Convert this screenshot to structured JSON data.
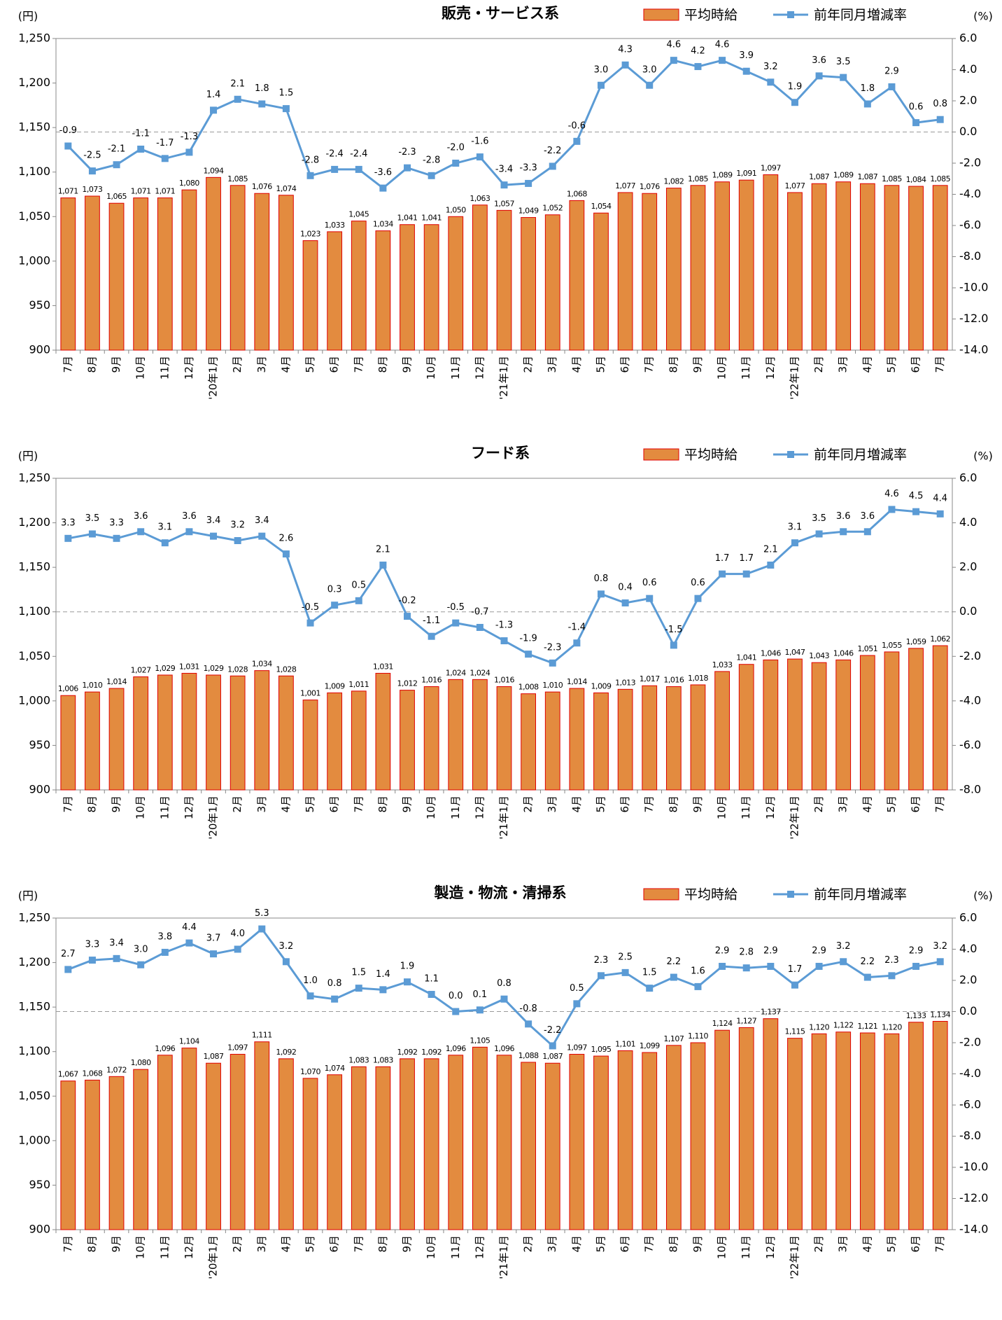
{
  "chart_data": [
    {
      "type": "bar-line",
      "title": "販売・サービス系",
      "y_label": "(円)",
      "y2_label": "(%)",
      "categories": [
        "7月",
        "8月",
        "9月",
        "10月",
        "11月",
        "12月",
        "'20年1月",
        "2月",
        "3月",
        "4月",
        "5月",
        "6月",
        "7月",
        "8月",
        "9月",
        "10月",
        "11月",
        "12月",
        "'21年1月",
        "2月",
        "3月",
        "4月",
        "5月",
        "6月",
        "7月",
        "8月",
        "9月",
        "10月",
        "11月",
        "12月",
        "'22年1月",
        "2月",
        "3月",
        "4月",
        "5月",
        "6月",
        "7月"
      ],
      "series": [
        {
          "name": "平均時給",
          "type": "bar",
          "color": "#e38b3f",
          "values": [
            1071,
            1073,
            1065,
            1071,
            1071,
            1080,
            1094,
            1085,
            1076,
            1074,
            1023,
            1033,
            1045,
            1034,
            1041,
            1041,
            1050,
            1063,
            1057,
            1049,
            1052,
            1068,
            1054,
            1077,
            1076,
            1082,
            1085,
            1089,
            1091,
            1097,
            1077,
            1087,
            1089,
            1087,
            1085,
            1084,
            1085
          ],
          "value_labels": [
            "1,071",
            "1,073",
            "1,065",
            "1,071",
            "1,071",
            "1,080",
            "1,094",
            "1,085",
            "1,076",
            "1,074",
            "1,023",
            "1,033",
            "1,045",
            "1,034",
            "1,041",
            "1,041",
            "1,050",
            "1,063",
            "1,057",
            "1,049",
            "1,052",
            "1,068",
            "1,054",
            "1,077",
            "1,076",
            "1,082",
            "1,085",
            "1,089",
            "1,091",
            "1,097",
            "1,077",
            "1,087",
            "1,089",
            "1,087",
            "1,085",
            "1,084",
            "1,085"
          ]
        },
        {
          "name": "前年同月増減率",
          "type": "line",
          "axis": "y2",
          "color": "#5b9bd5",
          "values": [
            -0.9,
            -2.5,
            -2.1,
            -1.1,
            -1.7,
            -1.3,
            1.4,
            2.1,
            1.8,
            1.5,
            -2.8,
            -2.4,
            -2.4,
            -3.6,
            -2.3,
            -2.8,
            -2.0,
            -1.6,
            -3.4,
            -3.3,
            -2.2,
            -0.6,
            3.0,
            4.3,
            3.0,
            4.6,
            4.2,
            4.6,
            3.9,
            3.2,
            1.9,
            3.6,
            3.5,
            1.8,
            2.9,
            0.6,
            0.8
          ],
          "value_labels": [
            "-0.9",
            "-2.5",
            "-2.1",
            "-1.1",
            "-1.7",
            "-1.3",
            "1.4",
            "2.1",
            "1.8",
            "1.5",
            "-2.8",
            "-2.4",
            "-2.4",
            "-3.6",
            "-2.3",
            "-2.8",
            "-2.0",
            "-1.6",
            "-3.4",
            "-3.3",
            "-2.2",
            "-0.6",
            "3.0",
            "4.3",
            "3.0",
            "4.6",
            "4.2",
            "4.6",
            "3.9",
            "3.2",
            "1.9",
            "3.6",
            "3.5",
            "1.8",
            "2.9",
            "0.6",
            "0.8"
          ]
        }
      ],
      "ylim": [
        900,
        1250
      ],
      "yticks": [
        900,
        950,
        {
          "value": 1000,
          "label": "1,000"
        },
        {
          "value": 1050,
          "label": "1,050"
        },
        {
          "value": 1100,
          "label": "1,100"
        },
        {
          "value": 1150,
          "label": "1,150"
        },
        {
          "value": 1200,
          "label": "1,200"
        },
        {
          "value": 1250,
          "label": "1,250"
        }
      ],
      "y2lim": [
        -14,
        6
      ],
      "y2ticks": [
        {
          "value": -14,
          "label": "-14.0"
        },
        {
          "value": -12,
          "label": "-12.0"
        },
        {
          "value": -10,
          "label": "-10.0"
        },
        {
          "value": -8,
          "label": "-8.0"
        },
        {
          "value": -6,
          "label": "-6.0"
        },
        {
          "value": -4,
          "label": "-4.0"
        },
        {
          "value": -2,
          "label": "-2.0"
        },
        {
          "value": 0,
          "label": "0.0"
        },
        {
          "value": 2,
          "label": "2.0"
        },
        {
          "value": 4,
          "label": "4.0"
        },
        {
          "value": 6,
          "label": "6.0"
        }
      ]
    },
    {
      "type": "bar-line",
      "title": "フード系",
      "y_label": "(円)",
      "y2_label": "(%)",
      "categories": [
        "7月",
        "8月",
        "9月",
        "10月",
        "11月",
        "12月",
        "'20年1月",
        "2月",
        "3月",
        "4月",
        "5月",
        "6月",
        "7月",
        "8月",
        "9月",
        "10月",
        "11月",
        "12月",
        "'21年1月",
        "2月",
        "3月",
        "4月",
        "5月",
        "6月",
        "7月",
        "8月",
        "9月",
        "10月",
        "11月",
        "12月",
        "'22年1月",
        "2月",
        "3月",
        "4月",
        "5月",
        "6月",
        "7月"
      ],
      "series": [
        {
          "name": "平均時給",
          "type": "bar",
          "color": "#e38b3f",
          "values": [
            1006,
            1010,
            1014,
            1027,
            1029,
            1031,
            1029,
            1028,
            1034,
            1028,
            1001,
            1009,
            1011,
            1031,
            1012,
            1016,
            1024,
            1024,
            1016,
            1008,
            1010,
            1014,
            1009,
            1013,
            1017,
            1016,
            1018,
            1033,
            1041,
            1046,
            1047,
            1043,
            1046,
            1051,
            1055,
            1059,
            1062
          ],
          "value_labels": [
            "1,006",
            "1,010",
            "1,014",
            "1,027",
            "1,029",
            "1,031",
            "1,029",
            "1,028",
            "1,034",
            "1,028",
            "1,001",
            "1,009",
            "1,011",
            "1,031",
            "1,012",
            "1,016",
            "1,024",
            "1,024",
            "1,016",
            "1,008",
            "1,010",
            "1,014",
            "1,009",
            "1,013",
            "1,017",
            "1,016",
            "1,018",
            "1,033",
            "1,041",
            "1,046",
            "1,047",
            "1,043",
            "1,046",
            "1,051",
            "1,055",
            "1,059",
            "1,062"
          ]
        },
        {
          "name": "前年同月増減率",
          "type": "line",
          "axis": "y2",
          "color": "#5b9bd5",
          "values": [
            3.3,
            3.5,
            3.3,
            3.6,
            3.1,
            3.6,
            3.4,
            3.2,
            3.4,
            2.6,
            -0.5,
            0.3,
            0.5,
            2.1,
            -0.2,
            -1.1,
            -0.5,
            -0.7,
            -1.3,
            -1.9,
            -2.3,
            -1.4,
            0.8,
            0.4,
            0.6,
            -1.5,
            0.6,
            1.7,
            1.7,
            2.1,
            3.1,
            3.5,
            3.6,
            3.6,
            4.6,
            4.5,
            4.4
          ],
          "value_labels": [
            "3.3",
            "3.5",
            "3.3",
            "3.6",
            "3.1",
            "3.6",
            "3.4",
            "3.2",
            "3.4",
            "2.6",
            "-0.5",
            "0.3",
            "0.5",
            "2.1",
            "-0.2",
            "-1.1",
            "-0.5",
            "-0.7",
            "-1.3",
            "-1.9",
            "-2.3",
            "-1.4",
            "0.8",
            "0.4",
            "0.6",
            "-1.5",
            "0.6",
            "1.7",
            "1.7",
            "2.1",
            "3.1",
            "3.5",
            "3.6",
            "3.6",
            "4.6",
            "4.5",
            "4.4"
          ]
        }
      ],
      "ylim": [
        900,
        1250
      ],
      "yticks": [
        900,
        950,
        {
          "value": 1000,
          "label": "1,000"
        },
        {
          "value": 1050,
          "label": "1,050"
        },
        {
          "value": 1100,
          "label": "1,100"
        },
        {
          "value": 1150,
          "label": "1,150"
        },
        {
          "value": 1200,
          "label": "1,200"
        },
        {
          "value": 1250,
          "label": "1,250"
        }
      ],
      "y2lim": [
        -8,
        6
      ],
      "y2ticks": [
        {
          "value": -8,
          "label": "-8.0"
        },
        {
          "value": -6,
          "label": "-6.0"
        },
        {
          "value": -4,
          "label": "-4.0"
        },
        {
          "value": -2,
          "label": "-2.0"
        },
        {
          "value": 0,
          "label": "0.0"
        },
        {
          "value": 2,
          "label": "2.0"
        },
        {
          "value": 4,
          "label": "4.0"
        },
        {
          "value": 6,
          "label": "6.0"
        }
      ]
    },
    {
      "type": "bar-line",
      "title": "製造・物流・清掃系",
      "y_label": "(円)",
      "y2_label": "(%)",
      "categories": [
        "7月",
        "8月",
        "9月",
        "10月",
        "11月",
        "12月",
        "'20年1月",
        "2月",
        "3月",
        "4月",
        "5月",
        "6月",
        "7月",
        "8月",
        "9月",
        "10月",
        "11月",
        "12月",
        "'21年1月",
        "2月",
        "3月",
        "4月",
        "5月",
        "6月",
        "7月",
        "8月",
        "9月",
        "10月",
        "11月",
        "12月",
        "'22年1月",
        "2月",
        "3月",
        "4月",
        "5月",
        "6月",
        "7月"
      ],
      "series": [
        {
          "name": "平均時給",
          "type": "bar",
          "color": "#e38b3f",
          "values": [
            1067,
            1068,
            1072,
            1080,
            1096,
            1104,
            1087,
            1097,
            1111,
            1092,
            1070,
            1074,
            1083,
            1083,
            1092,
            1092,
            1096,
            1105,
            1096,
            1088,
            1087,
            1097,
            1095,
            1101,
            1099,
            1107,
            1110,
            1124,
            1127,
            1137,
            1115,
            1120,
            1122,
            1121,
            1120,
            1133,
            1134
          ],
          "value_labels": [
            "1,067",
            "1,068",
            "1,072",
            "1,080",
            "1,096",
            "1,104",
            "1,087",
            "1,097",
            "1,111",
            "1,092",
            "1,070",
            "1,074",
            "1,083",
            "1,083",
            "1,092",
            "1,092",
            "1,096",
            "1,105",
            "1,096",
            "1,088",
            "1,087",
            "1,097",
            "1,095",
            "1,101",
            "1,099",
            "1,107",
            "1,110",
            "1,124",
            "1,127",
            "1,137",
            "1,115",
            "1,120",
            "1,122",
            "1,121",
            "1,120",
            "1,133",
            "1,134"
          ]
        },
        {
          "name": "前年同月増減率",
          "type": "line",
          "axis": "y2",
          "color": "#5b9bd5",
          "values": [
            2.7,
            3.3,
            3.4,
            3.0,
            3.8,
            4.4,
            3.7,
            4.0,
            5.3,
            3.2,
            1.0,
            0.8,
            1.5,
            1.4,
            1.9,
            1.1,
            0.0,
            0.1,
            0.8,
            -0.8,
            -2.2,
            0.5,
            2.3,
            2.5,
            1.5,
            2.2,
            1.6,
            2.9,
            2.8,
            2.9,
            1.7,
            2.9,
            3.2,
            2.2,
            2.3,
            2.9,
            3.2
          ],
          "value_labels": [
            "2.7",
            "3.3",
            "3.4",
            "3.0",
            "3.8",
            "4.4",
            "3.7",
            "4.0",
            "5.3",
            "3.2",
            "1.0",
            "0.8",
            "1.5",
            "1.4",
            "1.9",
            "1.1",
            "0.0",
            "0.1",
            "0.8",
            "-0.8",
            "-2.2",
            "0.5",
            "2.3",
            "2.5",
            "1.5",
            "2.2",
            "1.6",
            "2.9",
            "2.8",
            "2.9",
            "1.7",
            "2.9",
            "3.2",
            "2.2",
            "2.3",
            "2.9",
            "3.2"
          ]
        }
      ],
      "ylim": [
        900,
        1250
      ],
      "yticks": [
        900,
        950,
        {
          "value": 1000,
          "label": "1,000"
        },
        {
          "value": 1050,
          "label": "1,050"
        },
        {
          "value": 1100,
          "label": "1,100"
        },
        {
          "value": 1150,
          "label": "1,150"
        },
        {
          "value": 1200,
          "label": "1,200"
        },
        {
          "value": 1250,
          "label": "1,250"
        }
      ],
      "y2lim": [
        -14,
        6
      ],
      "y2ticks": [
        {
          "value": -14,
          "label": "-14.0"
        },
        {
          "value": -12,
          "label": "-12.0"
        },
        {
          "value": -10,
          "label": "-10.0"
        },
        {
          "value": -8,
          "label": "-8.0"
        },
        {
          "value": -6,
          "label": "-6.0"
        },
        {
          "value": -4,
          "label": "-4.0"
        },
        {
          "value": -2,
          "label": "-2.0"
        },
        {
          "value": 0,
          "label": "0.0"
        },
        {
          "value": 2,
          "label": "2.0"
        },
        {
          "value": 4,
          "label": "4.0"
        },
        {
          "value": 6,
          "label": "6.0"
        }
      ]
    }
  ]
}
